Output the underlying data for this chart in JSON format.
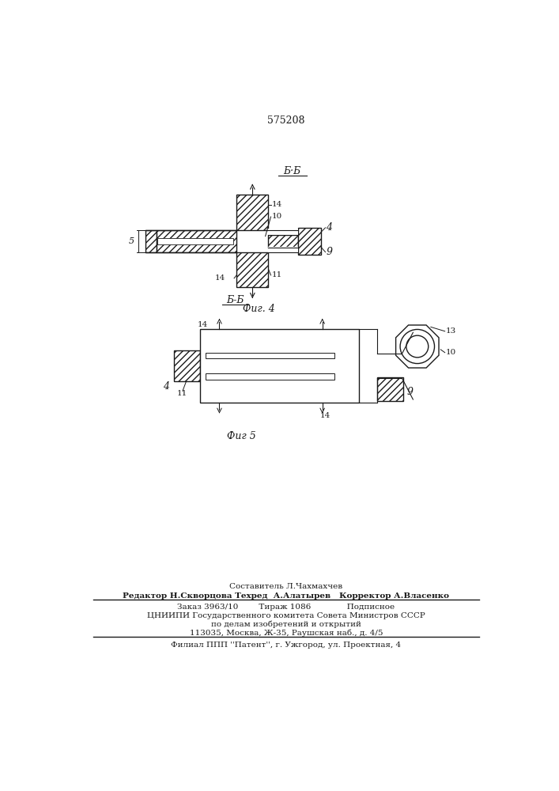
{
  "patent_number": "575208",
  "fig4_label": "Б·Б",
  "fig4_caption": "Фиг. 4",
  "fig5_label": "Б-Б",
  "fig5_caption": "Фиг 5",
  "footer_lines": [
    "Составитель Л.Чахмахчев",
    "Редактор Н.Скворцова Техред  А.Алатырев   Корректор А.Власенко",
    "Заказ 3963/10        Тираж 1086              Подписное",
    "ЦНИИПИ Государственного комитета Совета Министров СССР",
    "по делам изобретений и открытий",
    "113035, Москва, Ж-35, Раушская наб., д. 4/5",
    "Филиал ППП ''Патент'', г. Ужгород, ул. Проектная, 4"
  ],
  "bg_color": "#ffffff",
  "line_color": "#1a1a1a"
}
